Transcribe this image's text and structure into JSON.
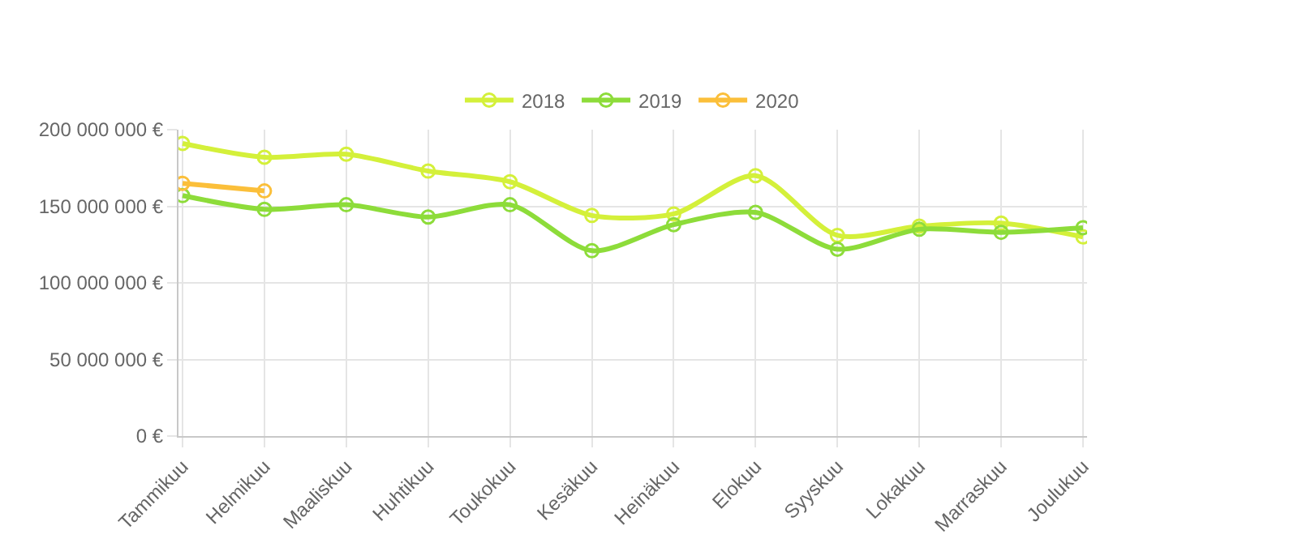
{
  "chart_data": {
    "type": "line",
    "categories": [
      "Tammikuu",
      "Helmikuu",
      "Maaliskuu",
      "Huhtikuu",
      "Toukokuu",
      "Kesäkuu",
      "Heinäkuu",
      "Elokuu",
      "Syyskuu",
      "Lokakuu",
      "Marraskuu",
      "Joulukuu"
    ],
    "series": [
      {
        "name": "2018",
        "color": "#d4f03a",
        "values": [
          191000000,
          182000000,
          184000000,
          173000000,
          166000000,
          144000000,
          145000000,
          170000000,
          131000000,
          137000000,
          139000000,
          130000000
        ]
      },
      {
        "name": "2019",
        "color": "#8ddc3a",
        "values": [
          157000000,
          148000000,
          151000000,
          143000000,
          151000000,
          121000000,
          138000000,
          146000000,
          122000000,
          135000000,
          133000000,
          136000000
        ]
      },
      {
        "name": "2020",
        "color": "#fbbf3a",
        "values": [
          165000000,
          160000000,
          null,
          null,
          null,
          null,
          null,
          null,
          null,
          null,
          null,
          null
        ]
      }
    ],
    "ylim": [
      0,
      200000000
    ],
    "yticks": [
      {
        "value": 0,
        "label": "0 €"
      },
      {
        "value": 50000000,
        "label": "50 000 000 €"
      },
      {
        "value": 100000000,
        "label": "100 000 000 €"
      },
      {
        "value": 150000000,
        "label": "150 000 000 €"
      },
      {
        "value": 200000000,
        "label": "200 000 000 €"
      }
    ],
    "grid": true,
    "legend": "top",
    "marker": "circle",
    "line_style": "solid"
  }
}
